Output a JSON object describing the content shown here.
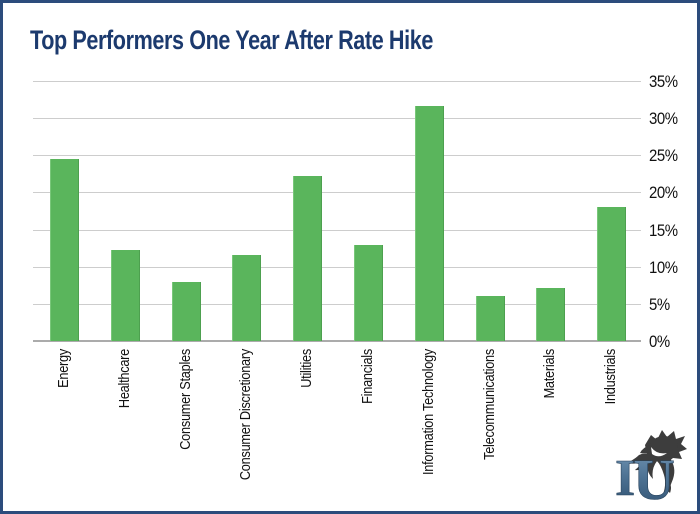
{
  "title": "Top Performers One Year After Rate Hike",
  "chart_data": {
    "type": "bar",
    "title": "Top Performers One Year After Rate Hike",
    "categories": [
      "Energy",
      "Healthcare",
      "Consumer Staples",
      "Consumer Discretionary",
      "Utilities",
      "Financials",
      "Information Technology",
      "Telecommunications",
      "Materials",
      "Industrials"
    ],
    "values": [
      24.5,
      12.2,
      8.0,
      11.6,
      22.2,
      12.9,
      31.6,
      6.0,
      7.1,
      18.0
    ],
    "xlabel": "",
    "ylabel": "",
    "ylim": [
      0,
      35
    ],
    "ytick_step": 5,
    "ytick_labels": [
      "0%",
      "5%",
      "10%",
      "15%",
      "20%",
      "25%",
      "30%",
      "35%"
    ],
    "grid": true,
    "legend_position": "none",
    "yaxis_side": "right",
    "x_tick_rotation": 90,
    "bar_color": "#5ab55c"
  },
  "colors": {
    "bar": "#5ab55c",
    "title": "#1c3a6e",
    "border": "#2c4c7c",
    "gridline": "#cdcdcd",
    "axis_line": "#ababab",
    "tick_text": "#111111",
    "logo_blue": "#4e7394",
    "logo_dark": "#3d3d3d"
  },
  "logo": {
    "monogram": "IU",
    "letter_i": "I",
    "letter_u": "U"
  }
}
